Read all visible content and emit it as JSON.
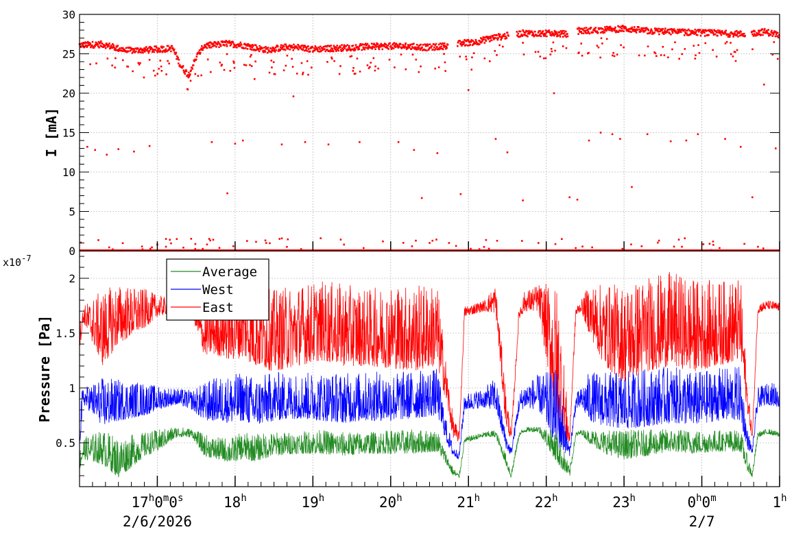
{
  "chart_data": [
    {
      "type": "scatter",
      "ylabel": "I [mA]",
      "ylim": [
        0,
        30
      ],
      "yticks": [
        0,
        5,
        10,
        15,
        20,
        25,
        30
      ],
      "grid": true,
      "x_unit": "hours since 16:00 on 2/6/2026",
      "xlim": [
        16.0,
        25.0
      ],
      "series": [
        {
          "color": "#ff0000",
          "main_band": {
            "x": [
              16.0,
              16.3,
              16.6,
              16.9,
              17.2,
              17.3,
              17.4,
              17.5,
              17.6,
              17.9,
              18.1,
              18.4,
              18.7,
              19.0,
              19.3,
              19.7,
              20.0,
              20.3,
              20.5,
              20.8,
              20.95,
              21.1,
              21.3,
              21.5,
              21.7,
              22.0,
              22.25,
              22.4,
              22.7,
              23.0,
              23.3,
              23.6,
              23.9,
              24.2,
              24.5,
              24.65,
              24.8,
              25.0
            ],
            "y": [
              26.1,
              26.2,
              25.4,
              25.5,
              25.7,
              23.5,
              22.3,
              24.5,
              26.0,
              26.3,
              26.1,
              25.5,
              25.9,
              25.6,
              25.7,
              25.9,
              26.0,
              25.9,
              25.8,
              26.1,
              26.4,
              26.5,
              27.0,
              27.3,
              27.6,
              27.6,
              27.5,
              27.9,
              28.0,
              28.2,
              27.9,
              27.8,
              27.7,
              27.6,
              27.5,
              27.6,
              27.8,
              27.4
            ]
          },
          "scatter": {
            "x": [
              16.1,
              16.2,
              16.35,
              16.5,
              16.7,
              16.9,
              17.0,
              17.25,
              17.4,
              17.7,
              17.9,
              18.0,
              18.1,
              18.25,
              18.4,
              18.6,
              18.75,
              18.9,
              19.1,
              19.2,
              19.4,
              19.6,
              19.9,
              20.1,
              20.3,
              20.4,
              20.5,
              20.6,
              20.75,
              20.9,
              21.0,
              21.2,
              21.35,
              21.5,
              21.7,
              21.9,
              22.1,
              22.2,
              22.3,
              22.4,
              22.55,
              22.7,
              22.85,
              22.95,
              23.1,
              23.3,
              23.45,
              23.6,
              23.8,
              23.95,
              24.1,
              24.3,
              24.5,
              24.65,
              24.8,
              24.95
            ],
            "y": [
              13.2,
              12.8,
              12.2,
              12.9,
              12.6,
              13.3,
              0.8,
              1.5,
              22.0,
              13.8,
              7.3,
              13.6,
              14.0,
              21.8,
              1.0,
              13.5,
              19.6,
              13.8,
              1.6,
              13.5,
              0.8,
              13.8,
              1.2,
              13.8,
              12.8,
              6.7,
              1.0,
              12.4,
              1.0,
              7.2,
              20.4,
              0.5,
              14.2,
              12.5,
              6.4,
              1.0,
              20.0,
              1.5,
              6.8,
              6.5,
              14.0,
              15.0,
              14.8,
              14.2,
              8.1,
              14.8,
              1.3,
              13.9,
              14.0,
              14.8,
              0.9,
              14.2,
              13.2,
              6.8,
              21.1,
              13.0
            ]
          },
          "zero_band": 0.1
        }
      ]
    },
    {
      "type": "line",
      "ylabel": "Pressure [Pa]",
      "y_multiplier": "x10^-7",
      "ylim": [
        0.1,
        2.25
      ],
      "yticks": [
        0.5,
        1,
        1.5,
        2
      ],
      "grid": true,
      "legend_position": "top-left",
      "x_unit": "hours since 16:00 on 2/6/2026",
      "xlim": [
        16.0,
        25.0
      ],
      "xticks": [
        {
          "x": 17.0,
          "base": "17",
          "sup": "h",
          "mid": "0",
          "sup2": "m",
          "tail": "0",
          "sup3": "s"
        },
        {
          "x": 18.0,
          "base": "18",
          "sup": "h"
        },
        {
          "x": 19.0,
          "base": "19",
          "sup": "h"
        },
        {
          "x": 20.0,
          "base": "20",
          "sup": "h"
        },
        {
          "x": 21.0,
          "base": "21",
          "sup": "h"
        },
        {
          "x": 22.0,
          "base": "22",
          "sup": "h"
        },
        {
          "x": 23.0,
          "base": "23",
          "sup": "h"
        },
        {
          "x": 24.0,
          "base": "0",
          "sup": "h",
          "mid": "0",
          "sup2": "m"
        },
        {
          "x": 25.0,
          "base": "1",
          "sup": "h"
        }
      ],
      "date_labels": [
        {
          "x": 17.0,
          "text": "2/6/2026"
        },
        {
          "x": 24.0,
          "text": "2/7"
        }
      ],
      "series": [
        {
          "name": "East",
          "color": "#ff0000",
          "x": [
            16.0,
            16.05,
            16.3,
            16.5,
            16.85,
            17.0,
            17.25,
            17.45,
            17.6,
            17.75,
            17.95,
            18.1,
            18.25,
            18.5,
            18.8,
            19.1,
            19.4,
            19.7,
            20.0,
            20.3,
            20.6,
            20.72,
            20.8,
            20.88,
            20.95,
            21.2,
            21.35,
            21.48,
            21.55,
            21.65,
            21.72,
            21.9,
            22.15,
            22.3,
            22.38,
            22.45,
            22.55,
            22.75,
            23.0,
            23.3,
            23.6,
            23.9,
            24.2,
            24.5,
            24.58,
            24.65,
            24.72,
            24.85,
            25.0
          ],
          "low": [
            1.35,
            1.6,
            1.2,
            1.4,
            1.55,
            1.65,
            1.7,
            1.65,
            1.3,
            1.3,
            1.25,
            1.28,
            1.2,
            1.15,
            1.2,
            1.25,
            1.2,
            1.2,
            1.18,
            1.15,
            1.2,
            0.85,
            0.55,
            0.5,
            1.65,
            1.7,
            1.68,
            0.65,
            0.52,
            1.62,
            1.7,
            1.7,
            0.62,
            0.48,
            1.65,
            1.7,
            1.5,
            1.2,
            1.05,
            1.15,
            1.2,
            1.15,
            1.2,
            1.25,
            0.8,
            0.52,
            1.68,
            1.72,
            1.7
          ],
          "high": [
            1.6,
            1.75,
            1.9,
            1.95,
            1.9,
            1.85,
            1.8,
            1.75,
            1.7,
            1.85,
            1.9,
            1.95,
            1.92,
            1.9,
            1.95,
            1.98,
            1.95,
            1.9,
            1.95,
            1.95,
            1.95,
            1.2,
            0.75,
            0.6,
            1.75,
            1.8,
            1.95,
            1.0,
            0.6,
            1.75,
            1.88,
            1.95,
            1.95,
            0.6,
            1.75,
            1.8,
            1.95,
            1.95,
            1.95,
            2.02,
            2.06,
            2.0,
            1.98,
            2.0,
            1.1,
            0.6,
            1.78,
            1.8,
            1.78
          ]
        },
        {
          "name": "West",
          "color": "#0000ff",
          "x": [
            16.0,
            16.05,
            16.3,
            16.5,
            16.85,
            17.0,
            17.25,
            17.45,
            17.6,
            17.75,
            17.95,
            18.1,
            18.25,
            18.5,
            18.8,
            19.1,
            19.4,
            19.7,
            20.0,
            20.3,
            20.6,
            20.72,
            20.8,
            20.88,
            20.95,
            21.2,
            21.35,
            21.48,
            21.55,
            21.65,
            21.72,
            21.9,
            22.15,
            22.3,
            22.38,
            22.45,
            22.55,
            22.75,
            23.0,
            23.3,
            23.6,
            23.9,
            24.2,
            24.5,
            24.58,
            24.65,
            24.72,
            24.85,
            25.0
          ],
          "low": [
            0.45,
            0.85,
            0.65,
            0.7,
            0.75,
            0.8,
            0.85,
            0.8,
            0.7,
            0.7,
            0.68,
            0.7,
            0.65,
            0.7,
            0.72,
            0.7,
            0.68,
            0.7,
            0.7,
            0.72,
            0.75,
            0.5,
            0.38,
            0.35,
            0.8,
            0.82,
            0.8,
            0.45,
            0.38,
            0.78,
            0.82,
            0.8,
            0.45,
            0.38,
            0.8,
            0.82,
            0.7,
            0.65,
            0.62,
            0.65,
            0.68,
            0.66,
            0.7,
            0.7,
            0.45,
            0.4,
            0.82,
            0.85,
            0.82
          ],
          "high": [
            0.95,
            1.0,
            1.1,
            1.08,
            1.05,
            1.02,
            1.0,
            0.98,
            1.05,
            1.1,
            1.12,
            1.15,
            1.1,
            1.15,
            1.14,
            1.15,
            1.14,
            1.15,
            1.15,
            1.16,
            1.18,
            0.7,
            0.48,
            0.42,
            0.95,
            1.0,
            1.1,
            0.6,
            0.45,
            0.95,
            1.05,
            1.12,
            1.18,
            0.45,
            0.95,
            1.0,
            1.15,
            1.15,
            1.15,
            1.18,
            1.2,
            1.15,
            1.18,
            1.2,
            0.65,
            0.45,
            1.0,
            1.05,
            1.05
          ]
        },
        {
          "name": "Average",
          "color": "#228b22",
          "x": [
            16.0,
            16.05,
            16.3,
            16.5,
            16.85,
            17.0,
            17.25,
            17.45,
            17.6,
            17.75,
            17.95,
            18.1,
            18.25,
            18.5,
            18.8,
            19.1,
            19.4,
            19.7,
            20.0,
            20.3,
            20.6,
            20.72,
            20.8,
            20.88,
            20.95,
            21.2,
            21.35,
            21.48,
            21.55,
            21.65,
            21.72,
            21.9,
            22.15,
            22.3,
            22.38,
            22.45,
            22.55,
            22.75,
            23.0,
            23.3,
            23.6,
            23.9,
            24.2,
            24.5,
            24.58,
            24.65,
            24.72,
            24.85,
            25.0
          ],
          "low": [
            0.25,
            0.35,
            0.3,
            0.18,
            0.38,
            0.42,
            0.55,
            0.55,
            0.38,
            0.35,
            0.32,
            0.35,
            0.33,
            0.38,
            0.4,
            0.4,
            0.38,
            0.4,
            0.4,
            0.4,
            0.42,
            0.3,
            0.2,
            0.17,
            0.5,
            0.55,
            0.55,
            0.3,
            0.17,
            0.55,
            0.6,
            0.6,
            0.3,
            0.18,
            0.55,
            0.58,
            0.5,
            0.4,
            0.35,
            0.38,
            0.42,
            0.4,
            0.42,
            0.42,
            0.25,
            0.18,
            0.55,
            0.58,
            0.55
          ],
          "high": [
            0.45,
            0.55,
            0.62,
            0.55,
            0.6,
            0.62,
            0.65,
            0.63,
            0.58,
            0.55,
            0.55,
            0.6,
            0.58,
            0.6,
            0.6,
            0.62,
            0.6,
            0.6,
            0.62,
            0.62,
            0.62,
            0.4,
            0.28,
            0.22,
            0.55,
            0.6,
            0.62,
            0.4,
            0.25,
            0.6,
            0.64,
            0.66,
            0.6,
            0.28,
            0.6,
            0.62,
            0.62,
            0.62,
            0.62,
            0.62,
            0.63,
            0.62,
            0.62,
            0.62,
            0.4,
            0.25,
            0.6,
            0.63,
            0.6
          ]
        }
      ]
    }
  ]
}
